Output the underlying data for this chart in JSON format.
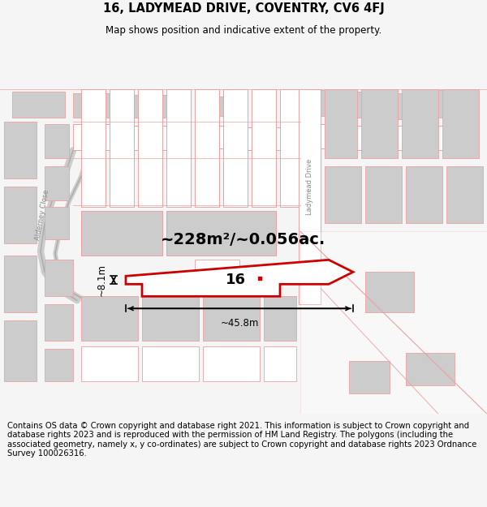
{
  "title_line1": "16, LADYMEAD DRIVE, COVENTRY, CV6 4FJ",
  "title_line2": "Map shows position and indicative extent of the property.",
  "area_text": "~228m²/~0.056ac.",
  "width_label": "~45.8m",
  "height_label": "~8.1m",
  "number_label": "16",
  "footer_text": "Contains OS data © Crown copyright and database right 2021. This information is subject to Crown copyright and database rights 2023 and is reproduced with the permission of HM Land Registry. The polygons (including the associated geometry, namely x, y co-ordinates) are subject to Crown copyright and database rights 2023 Ordnance Survey 100026316.",
  "bg_color": "#f5f5f5",
  "map_bg": "#ffffff",
  "highlight_color": "#cc0000",
  "light_red": "#f0a0a0",
  "gray_fill": "#cccccc",
  "road_color": "#e8e8e8",
  "title_fontsize": 10.5,
  "subtitle_fontsize": 9,
  "footer_fontsize": 7.2,
  "label_color": "#aaaaaa"
}
